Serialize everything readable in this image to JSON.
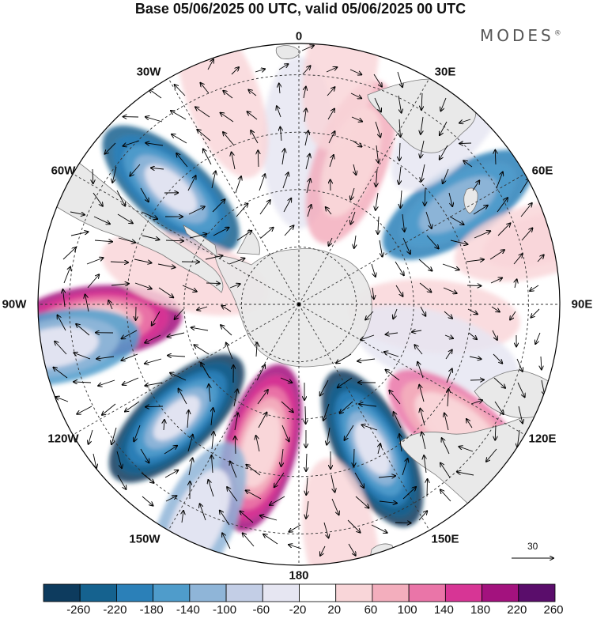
{
  "title": "Base 05/06/2025 00 UTC, valid 05/06/2025 00 UTC",
  "brand": "MODES",
  "brand_mark": "®",
  "longitude_labels": [
    "0",
    "30E",
    "60E",
    "90E",
    "120E",
    "150E",
    "180",
    "150W",
    "120W",
    "90W",
    "60W",
    "30W"
  ],
  "reference_vector_label": "30",
  "colorbar": {
    "labels": [
      "-260",
      "-220",
      "-180",
      "-140",
      "-100",
      "-60",
      "-20",
      "20",
      "60",
      "100",
      "140",
      "180",
      "220",
      "260"
    ],
    "colors": [
      "#0d3b5e",
      "#15628f",
      "#2b80b8",
      "#4f9ccb",
      "#8fb5d8",
      "#c3cee6",
      "#e6e6f2",
      "#ffffff",
      "#f9d6d9",
      "#f3aebd",
      "#ea75a8",
      "#d73595",
      "#a3127e",
      "#5a0d6b"
    ]
  },
  "map": {
    "land_color": "#e9e9e9",
    "anomaly_centers": [
      {
        "lon": 0,
        "colat": 0.62,
        "value": -60
      },
      {
        "lon": 20,
        "colat": 0.58,
        "value": 110
      },
      {
        "lon": 58,
        "colat": 0.72,
        "value": -150
      },
      {
        "lon": 95,
        "colat": 0.52,
        "value": 60
      },
      {
        "lon": 108,
        "colat": 0.55,
        "value": -60
      },
      {
        "lon": 128,
        "colat": 0.78,
        "value": 160
      },
      {
        "lon": 153,
        "colat": 0.62,
        "value": -250
      },
      {
        "lon": -165,
        "colat": 0.57,
        "value": 240
      },
      {
        "lon": -133,
        "colat": 0.64,
        "value": -250
      },
      {
        "lon": -95,
        "colat": 0.78,
        "value": 230
      },
      {
        "lon": -48,
        "colat": 0.66,
        "value": -200
      },
      {
        "lon": -75,
        "colat": 0.45,
        "value": 50
      },
      {
        "lon": -100,
        "colat": 0.95,
        "value": -120
      },
      {
        "lon": -20,
        "colat": 0.85,
        "value": 60
      },
      {
        "lon": 75,
        "colat": 0.95,
        "value": 80
      },
      {
        "lon": 40,
        "colat": 0.92,
        "value": -40
      },
      {
        "lon": -155,
        "colat": 0.92,
        "value": -80
      },
      {
        "lon": 170,
        "colat": 0.93,
        "value": 70
      },
      {
        "lon": 10,
        "colat": 0.93,
        "value": 60
      }
    ]
  }
}
